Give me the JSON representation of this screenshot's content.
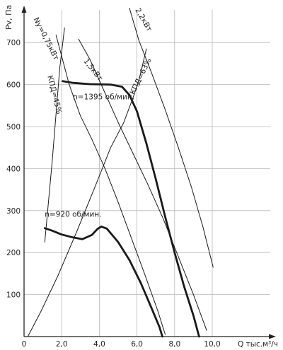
{
  "chart_data": {
    "type": "line",
    "title": "",
    "xlabel": "Q тыс.м³/ч",
    "ylabel": "Pv, Па",
    "xlim": [
      0,
      11
    ],
    "ylim": [
      0,
      780
    ],
    "x_ticks": [
      {
        "value": 0,
        "label": "0"
      },
      {
        "value": 2,
        "label": "2,0"
      },
      {
        "value": 4,
        "label": "4,0"
      },
      {
        "value": 6,
        "label": "6,0"
      },
      {
        "value": 8,
        "label": "8,0"
      },
      {
        "value": 10,
        "label": "10,0"
      }
    ],
    "y_ticks": [
      {
        "value": 100,
        "label": "100"
      },
      {
        "value": 200,
        "label": "200"
      },
      {
        "value": 300,
        "label": "300"
      },
      {
        "value": 400,
        "label": "400"
      },
      {
        "value": 500,
        "label": "500"
      },
      {
        "value": 600,
        "label": "600"
      },
      {
        "value": 700,
        "label": "700"
      }
    ],
    "grid": true,
    "series": [
      {
        "name": "n=1395 об/мин.",
        "role": "fan_curve",
        "points": [
          [
            2.05,
            608
          ],
          [
            2.6,
            604
          ],
          [
            3.5,
            601
          ],
          [
            4.6,
            600
          ],
          [
            5.2,
            595
          ],
          [
            5.6,
            575
          ],
          [
            6.0,
            536
          ],
          [
            6.5,
            460
          ],
          [
            7.0,
            375
          ],
          [
            7.5,
            285
          ],
          [
            8.0,
            200
          ],
          [
            8.5,
            120
          ],
          [
            9.0,
            50
          ],
          [
            9.3,
            0
          ]
        ]
      },
      {
        "name": "n=920 об/мин.",
        "role": "fan_curve",
        "points": [
          [
            1.1,
            258
          ],
          [
            1.5,
            252
          ],
          [
            2.0,
            243
          ],
          [
            2.6,
            236
          ],
          [
            3.1,
            232
          ],
          [
            3.6,
            242
          ],
          [
            3.9,
            256
          ],
          [
            4.1,
            262
          ],
          [
            4.4,
            257
          ],
          [
            5.0,
            225
          ],
          [
            5.6,
            182
          ],
          [
            6.2,
            128
          ],
          [
            6.8,
            65
          ],
          [
            7.2,
            22
          ],
          [
            7.35,
            0
          ]
        ]
      },
      {
        "name": "Ny=0,75кВт",
        "role": "power_line",
        "points": [
          [
            1.7,
            718
          ],
          [
            2.4,
            600
          ],
          [
            3.0,
            525
          ],
          [
            3.6,
            470
          ],
          [
            4.3,
            400
          ],
          [
            5.0,
            320
          ],
          [
            5.7,
            235
          ],
          [
            6.4,
            150
          ],
          [
            7.1,
            62
          ],
          [
            7.5,
            5
          ]
        ]
      },
      {
        "name": "1,5кВт",
        "role": "power_line",
        "points": [
          [
            2.9,
            708
          ],
          [
            3.5,
            660
          ],
          [
            4.2,
            590
          ],
          [
            5.0,
            510
          ],
          [
            5.8,
            435
          ],
          [
            6.6,
            360
          ],
          [
            7.4,
            280
          ],
          [
            8.2,
            190
          ],
          [
            9.0,
            100
          ],
          [
            9.7,
            15
          ]
        ]
      },
      {
        "name": "2,2кВт",
        "role": "power_line",
        "points": [
          [
            5.6,
            782
          ],
          [
            6.1,
            705
          ],
          [
            6.8,
            625
          ],
          [
            7.5,
            540
          ],
          [
            8.2,
            450
          ],
          [
            8.9,
            355
          ],
          [
            9.5,
            262
          ],
          [
            10.05,
            165
          ]
        ]
      },
      {
        "name": "КПД=45%",
        "role": "efficiency_line",
        "points": [
          [
            1.1,
            225
          ],
          [
            1.5,
            420
          ],
          [
            1.9,
            640
          ],
          [
            2.15,
            735
          ]
        ]
      },
      {
        "name": "КПД=63%",
        "role": "efficiency_line",
        "points": [
          [
            0.2,
            0
          ],
          [
            0.9,
            60
          ],
          [
            1.8,
            145
          ],
          [
            2.8,
            250
          ],
          [
            3.8,
            360
          ],
          [
            4.6,
            450
          ],
          [
            5.3,
            510
          ],
          [
            5.8,
            570
          ],
          [
            6.1,
            610
          ],
          [
            6.5,
            685
          ]
        ]
      }
    ],
    "annotations": [
      {
        "text": "n=1395 об/мин.",
        "x": 2.6,
        "y": 565
      },
      {
        "text": "n=920 об/мин.",
        "x": 1.1,
        "y": 285
      },
      {
        "text": "Ny=0,75кВт",
        "x": 0.5,
        "y": 756
      },
      {
        "text": "КПД=45%",
        "x": 1.25,
        "y": 620
      },
      {
        "text": "1,5кВт",
        "x": 3.15,
        "y": 656
      },
      {
        "text": "2,2кВт",
        "x": 5.9,
        "y": 778
      },
      {
        "text": "КПД=63%",
        "x": 5.85,
        "y": 575
      }
    ]
  }
}
